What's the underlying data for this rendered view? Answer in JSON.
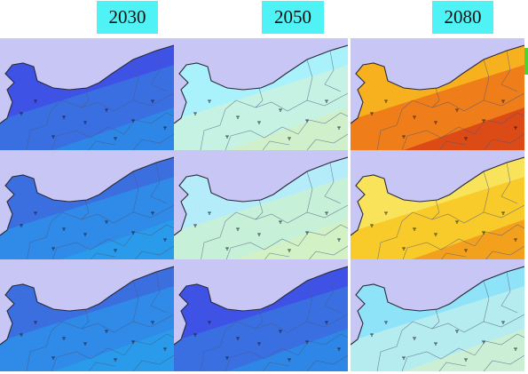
{
  "years": [
    "2030",
    "2050",
    "2080"
  ],
  "palettes": {
    "deep-blue": [
      "#3f52e6",
      "#3a6fe2",
      "#2e86e6"
    ],
    "mid-blue": [
      "#3b6fe0",
      "#2f8ae8",
      "#2a9bea"
    ],
    "light-blue": [
      "#38a8ee",
      "#4ac0f0",
      "#3aa0ec"
    ],
    "pale-cyan": [
      "#a9f1fb",
      "#c6f2e4",
      "#d0f0cc"
    ],
    "mixed-cyan": [
      "#6edcf6",
      "#a6f0fa",
      "#c8f0d6"
    ],
    "pale-green": [
      "#b4ecfa",
      "#c7f0d8",
      "#d2f2c6"
    ],
    "hot-orange": [
      "#f7b11f",
      "#ef7d1a",
      "#dc4a16"
    ],
    "warm-yellow": [
      "#f9e35a",
      "#f8cb2a",
      "#f3a11c"
    ],
    "cool-cyan": [
      "#8fe3f8",
      "#b5ecef",
      "#cbefd4"
    ]
  },
  "rows": [
    [
      "deep-blue",
      "pale-cyan",
      "hot-orange"
    ],
    [
      "mid-blue",
      "pale-green",
      "warm-yellow"
    ],
    [
      "mid-blue",
      "deep-blue",
      "cool-cyan"
    ]
  ],
  "accent_colors": {
    "header_bg": "#4ff3f5",
    "sea": "#c7c6f4",
    "edge_tab": "#4cd431"
  }
}
